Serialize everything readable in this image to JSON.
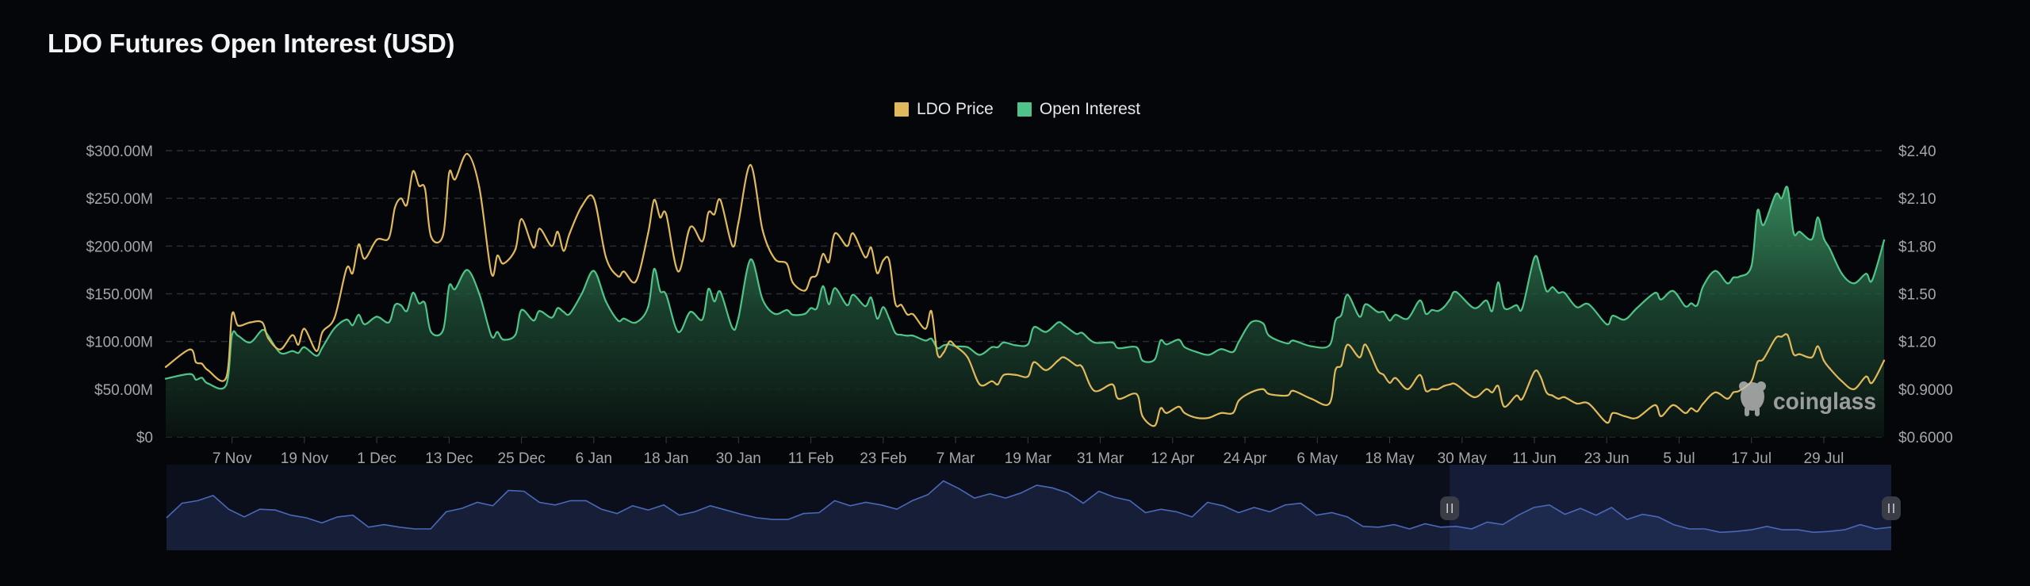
{
  "title": "LDO Futures Open Interest (USD)",
  "legend": [
    {
      "label": "LDO Price",
      "color": "#e0b95c"
    },
    {
      "label": "Open Interest",
      "color": "#4fc488"
    }
  ],
  "watermark": "coinglass",
  "chart_data": {
    "type": "line",
    "title": "LDO Futures Open Interest (USD)",
    "x_range": [
      "2022-10-27",
      "2023-08-08"
    ],
    "x_ticks": [
      {
        "label": "7 Nov",
        "date": "2022-11-07"
      },
      {
        "label": "19 Nov",
        "date": "2022-11-19"
      },
      {
        "label": "1 Dec",
        "date": "2022-12-01"
      },
      {
        "label": "13 Dec",
        "date": "2022-12-13"
      },
      {
        "label": "25 Dec",
        "date": "2022-12-25"
      },
      {
        "label": "6 Jan",
        "date": "2023-01-06"
      },
      {
        "label": "18 Jan",
        "date": "2023-01-18"
      },
      {
        "label": "30 Jan",
        "date": "2023-01-30"
      },
      {
        "label": "11 Feb",
        "date": "2023-02-11"
      },
      {
        "label": "23 Feb",
        "date": "2023-02-23"
      },
      {
        "label": "7 Mar",
        "date": "2023-03-07"
      },
      {
        "label": "19 Mar",
        "date": "2023-03-19"
      },
      {
        "label": "31 Mar",
        "date": "2023-03-31"
      },
      {
        "label": "12 Apr",
        "date": "2023-04-12"
      },
      {
        "label": "24 Apr",
        "date": "2023-04-24"
      },
      {
        "label": "6 May",
        "date": "2023-05-06"
      },
      {
        "label": "18 May",
        "date": "2023-05-18"
      },
      {
        "label": "30 May",
        "date": "2023-05-30"
      },
      {
        "label": "11 Jun",
        "date": "2023-06-11"
      },
      {
        "label": "23 Jun",
        "date": "2023-06-23"
      },
      {
        "label": "5 Jul",
        "date": "2023-07-05"
      },
      {
        "label": "17 Jul",
        "date": "2023-07-17"
      },
      {
        "label": "29 Jul",
        "date": "2023-07-29"
      }
    ],
    "y_left": {
      "unit": "USD millions",
      "range": [
        0,
        300
      ],
      "ticks": [
        {
          "v": 300,
          "label": "$300.00M"
        },
        {
          "v": 250,
          "label": "$250.00M"
        },
        {
          "v": 200,
          "label": "$200.00M"
        },
        {
          "v": 150,
          "label": "$150.00M"
        },
        {
          "v": 100,
          "label": "$100.00M"
        },
        {
          "v": 50,
          "label": "$50.00M"
        },
        {
          "v": 0,
          "label": "$0"
        }
      ]
    },
    "y_right": {
      "unit": "USD",
      "range": [
        0.6,
        2.4
      ],
      "ticks": [
        {
          "v": 2.4,
          "label": "$2.40"
        },
        {
          "v": 2.1,
          "label": "$2.10"
        },
        {
          "v": 1.8,
          "label": "$1.80"
        },
        {
          "v": 1.5,
          "label": "$1.50"
        },
        {
          "v": 1.2,
          "label": "$1.20"
        },
        {
          "v": 0.9,
          "label": "$0.9000"
        },
        {
          "v": 0.6,
          "label": "$0.6000"
        }
      ]
    },
    "grid": true,
    "legend_position": "top-center",
    "series": [
      {
        "name": "Open Interest",
        "axis": "left",
        "type": "area",
        "color": "#4fc488"
      },
      {
        "name": "LDO Price",
        "axis": "right",
        "type": "line",
        "color": "#e0b95c"
      }
    ],
    "columns": [
      "date",
      "open_interest_musd",
      "ldo_price_usd"
    ],
    "points": [
      [
        "2022-10-27",
        61,
        1.04
      ],
      [
        "2022-10-31",
        66,
        1.15
      ],
      [
        "2022-11-01",
        60,
        1.07
      ],
      [
        "2022-11-02",
        62,
        1.06
      ],
      [
        "2022-11-03",
        56,
        1.02
      ],
      [
        "2022-11-06",
        54,
        0.97
      ],
      [
        "2022-11-07",
        107,
        1.37
      ],
      [
        "2022-11-08",
        106,
        1.3
      ],
      [
        "2022-11-10",
        99,
        1.32
      ],
      [
        "2022-11-12",
        112,
        1.32
      ],
      [
        "2022-11-13",
        106,
        1.22
      ],
      [
        "2022-11-15",
        88,
        1.15
      ],
      [
        "2022-11-17",
        90,
        1.24
      ],
      [
        "2022-11-18",
        88,
        1.18
      ],
      [
        "2022-11-19",
        94,
        1.28
      ],
      [
        "2022-11-21",
        85,
        1.14
      ],
      [
        "2022-11-22",
        94,
        1.26
      ],
      [
        "2022-11-24",
        114,
        1.35
      ],
      [
        "2022-11-26",
        123,
        1.66
      ],
      [
        "2022-11-27",
        117,
        1.63
      ],
      [
        "2022-11-28",
        128,
        1.81
      ],
      [
        "2022-11-29",
        118,
        1.72
      ],
      [
        "2022-12-01",
        126,
        1.84
      ],
      [
        "2022-12-03",
        120,
        1.85
      ],
      [
        "2022-12-04",
        138,
        2.04
      ],
      [
        "2022-12-05",
        138,
        2.1
      ],
      [
        "2022-12-06",
        132,
        2.06
      ],
      [
        "2022-12-07",
        151,
        2.27
      ],
      [
        "2022-12-08",
        140,
        2.18
      ],
      [
        "2022-12-09",
        140,
        2.16
      ],
      [
        "2022-12-10",
        110,
        1.86
      ],
      [
        "2022-12-12",
        112,
        1.87
      ],
      [
        "2022-12-13",
        158,
        2.26
      ],
      [
        "2022-12-14",
        155,
        2.22
      ],
      [
        "2022-12-16",
        175,
        2.38
      ],
      [
        "2022-12-18",
        150,
        2.17
      ],
      [
        "2022-12-20",
        106,
        1.63
      ],
      [
        "2022-12-21",
        110,
        1.74
      ],
      [
        "2022-12-22",
        102,
        1.69
      ],
      [
        "2022-12-24",
        107,
        1.78
      ],
      [
        "2022-12-25",
        133,
        1.97
      ],
      [
        "2022-12-27",
        122,
        1.79
      ],
      [
        "2022-12-28",
        132,
        1.91
      ],
      [
        "2022-12-30",
        125,
        1.8
      ],
      [
        "2022-12-31",
        135,
        1.89
      ],
      [
        "2023-01-01",
        131,
        1.77
      ],
      [
        "2023-01-02",
        129,
        1.88
      ],
      [
        "2023-01-04",
        150,
        2.05
      ],
      [
        "2023-01-06",
        174,
        2.1
      ],
      [
        "2023-01-08",
        142,
        1.73
      ],
      [
        "2023-01-10",
        122,
        1.61
      ],
      [
        "2023-01-11",
        124,
        1.64
      ],
      [
        "2023-01-13",
        120,
        1.58
      ],
      [
        "2023-01-15",
        136,
        1.88
      ],
      [
        "2023-01-16",
        176,
        2.09
      ],
      [
        "2023-01-17",
        153,
        1.98
      ],
      [
        "2023-01-18",
        149,
        2.0
      ],
      [
        "2023-01-20",
        110,
        1.64
      ],
      [
        "2023-01-22",
        131,
        1.92
      ],
      [
        "2023-01-24",
        123,
        1.83
      ],
      [
        "2023-01-25",
        155,
        2.01
      ],
      [
        "2023-01-26",
        142,
        2.0
      ],
      [
        "2023-01-27",
        152,
        2.09
      ],
      [
        "2023-01-29",
        114,
        1.8
      ],
      [
        "2023-01-30",
        125,
        1.95
      ],
      [
        "2023-02-01",
        186,
        2.31
      ],
      [
        "2023-02-03",
        144,
        1.9
      ],
      [
        "2023-02-05",
        129,
        1.72
      ],
      [
        "2023-02-07",
        133,
        1.69
      ],
      [
        "2023-02-08",
        128,
        1.57
      ],
      [
        "2023-02-10",
        129,
        1.52
      ],
      [
        "2023-02-11",
        135,
        1.6
      ],
      [
        "2023-02-12",
        135,
        1.62
      ],
      [
        "2023-02-13",
        158,
        1.75
      ],
      [
        "2023-02-14",
        139,
        1.7
      ],
      [
        "2023-02-15",
        156,
        1.88
      ],
      [
        "2023-02-17",
        138,
        1.8
      ],
      [
        "2023-02-18",
        149,
        1.88
      ],
      [
        "2023-02-20",
        137,
        1.73
      ],
      [
        "2023-02-21",
        146,
        1.79
      ],
      [
        "2023-02-22",
        124,
        1.63
      ],
      [
        "2023-02-23",
        136,
        1.71
      ],
      [
        "2023-02-24",
        124,
        1.71
      ],
      [
        "2023-02-25",
        109,
        1.44
      ],
      [
        "2023-02-26",
        107,
        1.43
      ],
      [
        "2023-02-27",
        106,
        1.37
      ],
      [
        "2023-02-28",
        106,
        1.37
      ],
      [
        "2023-03-02",
        101,
        1.28
      ],
      [
        "2023-03-03",
        103,
        1.39
      ],
      [
        "2023-03-04",
        93,
        1.12
      ],
      [
        "2023-03-05",
        96,
        1.13
      ],
      [
        "2023-03-06",
        97,
        1.2
      ],
      [
        "2023-03-07",
        95,
        1.17
      ],
      [
        "2023-03-09",
        94,
        1.1
      ],
      [
        "2023-03-11",
        86,
        0.93
      ],
      [
        "2023-03-13",
        94,
        0.95
      ],
      [
        "2023-03-14",
        94,
        0.93
      ],
      [
        "2023-03-15",
        99,
        0.99
      ],
      [
        "2023-03-17",
        96,
        0.99
      ],
      [
        "2023-03-19",
        97,
        0.98
      ],
      [
        "2023-03-20",
        115,
        1.07
      ],
      [
        "2023-03-22",
        110,
        1.02
      ],
      [
        "2023-03-24",
        120,
        1.08
      ],
      [
        "2023-03-25",
        117,
        1.1
      ],
      [
        "2023-03-27",
        108,
        1.05
      ],
      [
        "2023-03-28",
        109,
        1.04
      ],
      [
        "2023-03-30",
        99,
        0.89
      ],
      [
        "2023-04-02",
        99,
        0.93
      ],
      [
        "2023-04-03",
        93,
        0.84
      ],
      [
        "2023-04-06",
        94,
        0.87
      ],
      [
        "2023-04-07",
        80,
        0.73
      ],
      [
        "2023-04-09",
        81,
        0.67
      ],
      [
        "2023-04-10",
        101,
        0.78
      ],
      [
        "2023-04-11",
        97,
        0.75
      ],
      [
        "2023-04-13",
        102,
        0.79
      ],
      [
        "2023-04-14",
        94,
        0.75
      ],
      [
        "2023-04-16",
        89,
        0.72
      ],
      [
        "2023-04-18",
        86,
        0.72
      ],
      [
        "2023-04-20",
        92,
        0.75
      ],
      [
        "2023-04-22",
        89,
        0.75
      ],
      [
        "2023-04-23",
        100,
        0.83
      ],
      [
        "2023-04-25",
        120,
        0.88
      ],
      [
        "2023-04-27",
        119,
        0.9
      ],
      [
        "2023-04-28",
        106,
        0.87
      ],
      [
        "2023-05-01",
        98,
        0.86
      ],
      [
        "2023-05-02",
        101,
        0.89
      ],
      [
        "2023-05-05",
        95,
        0.84
      ],
      [
        "2023-05-08",
        96,
        0.81
      ],
      [
        "2023-05-09",
        122,
        1.02
      ],
      [
        "2023-05-10",
        128,
        1.05
      ],
      [
        "2023-05-11",
        149,
        1.18
      ],
      [
        "2023-05-13",
        126,
        1.1
      ],
      [
        "2023-05-14",
        139,
        1.18
      ],
      [
        "2023-05-16",
        131,
        1.02
      ],
      [
        "2023-05-17",
        131,
        0.99
      ],
      [
        "2023-05-18",
        122,
        0.94
      ],
      [
        "2023-05-19",
        128,
        0.97
      ],
      [
        "2023-05-21",
        124,
        0.9
      ],
      [
        "2023-05-23",
        143,
        0.99
      ],
      [
        "2023-05-24",
        129,
        0.89
      ],
      [
        "2023-05-25",
        133,
        0.9
      ],
      [
        "2023-05-26",
        132,
        0.9
      ],
      [
        "2023-05-27",
        136,
        0.92
      ],
      [
        "2023-05-28",
        144,
        0.93
      ],
      [
        "2023-05-29",
        152,
        0.93
      ],
      [
        "2023-06-01",
        135,
        0.85
      ],
      [
        "2023-06-03",
        143,
        0.9
      ],
      [
        "2023-06-04",
        132,
        0.88
      ],
      [
        "2023-06-05",
        162,
        0.92
      ],
      [
        "2023-06-06",
        135,
        0.79
      ],
      [
        "2023-06-08",
        138,
        0.86
      ],
      [
        "2023-06-09",
        135,
        0.84
      ],
      [
        "2023-06-11",
        188,
        1.01
      ],
      [
        "2023-06-12",
        175,
        0.98
      ],
      [
        "2023-06-13",
        153,
        0.88
      ],
      [
        "2023-06-14",
        157,
        0.86
      ],
      [
        "2023-06-15",
        151,
        0.84
      ],
      [
        "2023-06-16",
        151,
        0.85
      ],
      [
        "2023-06-18",
        136,
        0.81
      ],
      [
        "2023-06-20",
        139,
        0.81
      ],
      [
        "2023-06-23",
        118,
        0.69
      ],
      [
        "2023-06-24",
        127,
        0.75
      ],
      [
        "2023-06-26",
        123,
        0.73
      ],
      [
        "2023-06-28",
        135,
        0.72
      ],
      [
        "2023-07-01",
        151,
        0.8
      ],
      [
        "2023-07-02",
        144,
        0.73
      ],
      [
        "2023-07-04",
        153,
        0.8
      ],
      [
        "2023-07-06",
        137,
        0.75
      ],
      [
        "2023-07-07",
        140,
        0.78
      ],
      [
        "2023-07-08",
        138,
        0.76
      ],
      [
        "2023-07-09",
        158,
        0.81
      ],
      [
        "2023-07-11",
        174,
        0.88
      ],
      [
        "2023-07-13",
        161,
        0.84
      ],
      [
        "2023-07-14",
        167,
        0.88
      ],
      [
        "2023-07-15",
        168,
        0.89
      ],
      [
        "2023-07-17",
        179,
        0.95
      ],
      [
        "2023-07-18",
        237,
        1.07
      ],
      [
        "2023-07-19",
        222,
        1.09
      ],
      [
        "2023-07-21",
        254,
        1.22
      ],
      [
        "2023-07-22",
        250,
        1.23
      ],
      [
        "2023-07-23",
        261,
        1.24
      ],
      [
        "2023-07-24",
        214,
        1.12
      ],
      [
        "2023-07-25",
        215,
        1.12
      ],
      [
        "2023-07-27",
        207,
        1.1
      ],
      [
        "2023-07-28",
        230,
        1.17
      ],
      [
        "2023-07-29",
        208,
        1.08
      ],
      [
        "2023-07-30",
        197,
        1.03
      ],
      [
        "2023-08-01",
        171,
        0.95
      ],
      [
        "2023-08-03",
        161,
        0.9
      ],
      [
        "2023-08-05",
        171,
        0.98
      ],
      [
        "2023-08-06",
        164,
        0.94
      ],
      [
        "2023-08-08",
        206,
        1.08
      ]
    ]
  },
  "navigator": {
    "color": "#4a68b8",
    "selected_range_fraction": [
      0.744,
      1.0
    ],
    "levels": [
      0.38,
      0.55,
      0.58,
      0.64,
      0.48,
      0.39,
      0.48,
      0.47,
      0.41,
      0.38,
      0.32,
      0.39,
      0.41,
      0.27,
      0.3,
      0.27,
      0.25,
      0.25,
      0.45,
      0.49,
      0.56,
      0.52,
      0.7,
      0.69,
      0.56,
      0.53,
      0.58,
      0.58,
      0.48,
      0.43,
      0.52,
      0.47,
      0.53,
      0.41,
      0.45,
      0.52,
      0.47,
      0.42,
      0.38,
      0.36,
      0.36,
      0.43,
      0.44,
      0.58,
      0.52,
      0.56,
      0.53,
      0.48,
      0.58,
      0.65,
      0.81,
      0.72,
      0.61,
      0.66,
      0.61,
      0.67,
      0.76,
      0.73,
      0.67,
      0.55,
      0.69,
      0.62,
      0.58,
      0.44,
      0.48,
      0.45,
      0.39,
      0.56,
      0.52,
      0.44,
      0.5,
      0.45,
      0.53,
      0.55,
      0.41,
      0.44,
      0.39,
      0.28,
      0.27,
      0.3,
      0.25,
      0.31,
      0.27,
      0.28,
      0.25,
      0.33,
      0.3,
      0.41,
      0.5,
      0.53,
      0.42,
      0.49,
      0.41,
      0.5,
      0.36,
      0.42,
      0.39,
      0.3,
      0.25,
      0.25,
      0.21,
      0.22,
      0.24,
      0.28,
      0.24,
      0.24,
      0.21,
      0.22,
      0.24,
      0.3,
      0.25,
      0.27
    ]
  }
}
